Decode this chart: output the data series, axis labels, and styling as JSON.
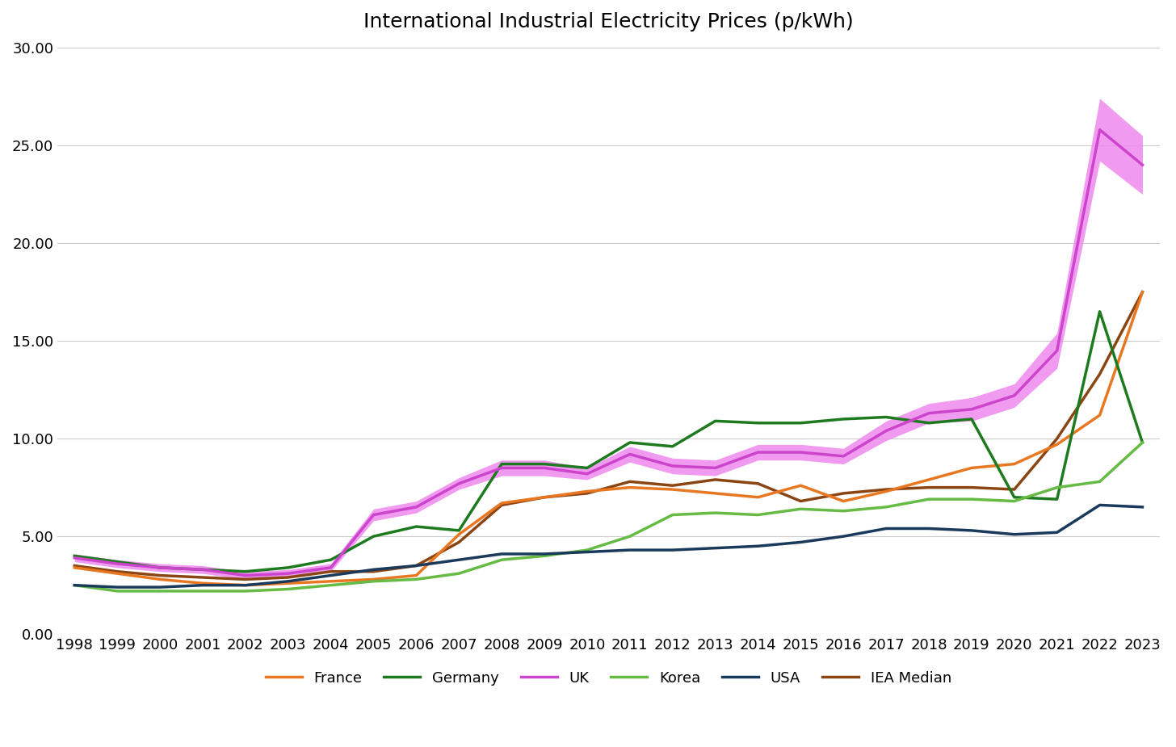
{
  "title": "International Industrial Electricity Prices (p/kWh)",
  "years": [
    1998,
    1999,
    2000,
    2001,
    2002,
    2003,
    2004,
    2005,
    2006,
    2007,
    2008,
    2009,
    2010,
    2011,
    2012,
    2013,
    2014,
    2015,
    2016,
    2017,
    2018,
    2019,
    2020,
    2021,
    2022,
    2023
  ],
  "france": [
    3.4,
    3.1,
    2.8,
    2.6,
    2.5,
    2.6,
    2.7,
    2.8,
    3.0,
    5.1,
    6.7,
    7.0,
    7.3,
    7.5,
    7.4,
    7.2,
    7.0,
    7.6,
    6.8,
    7.3,
    7.9,
    8.5,
    8.7,
    9.7,
    11.2,
    17.5
  ],
  "germany": [
    4.0,
    3.7,
    3.4,
    3.3,
    3.2,
    3.4,
    3.8,
    5.0,
    5.5,
    5.3,
    8.7,
    8.7,
    8.5,
    9.8,
    9.6,
    10.9,
    10.8,
    10.8,
    11.0,
    11.1,
    10.8,
    11.0,
    7.0,
    6.9,
    16.5,
    9.8
  ],
  "uk": [
    3.9,
    3.6,
    3.4,
    3.3,
    3.0,
    3.1,
    3.4,
    6.1,
    6.5,
    7.7,
    8.5,
    8.5,
    8.2,
    9.2,
    8.6,
    8.5,
    9.3,
    9.3,
    9.1,
    10.4,
    11.3,
    11.5,
    12.2,
    14.5,
    25.8,
    24.0
  ],
  "uk_lower": [
    3.7,
    3.4,
    3.2,
    3.1,
    2.8,
    2.9,
    3.2,
    5.8,
    6.2,
    7.4,
    8.1,
    8.1,
    7.9,
    8.8,
    8.2,
    8.1,
    8.9,
    8.9,
    8.7,
    9.9,
    10.8,
    10.9,
    11.6,
    13.6,
    24.2,
    22.5
  ],
  "uk_upper": [
    4.1,
    3.8,
    3.6,
    3.5,
    3.2,
    3.3,
    3.6,
    6.4,
    6.8,
    8.0,
    8.9,
    8.9,
    8.5,
    9.6,
    9.0,
    8.9,
    9.7,
    9.7,
    9.5,
    10.9,
    11.8,
    12.1,
    12.8,
    15.4,
    27.4,
    25.5
  ],
  "korea": [
    2.5,
    2.2,
    2.2,
    2.2,
    2.2,
    2.3,
    2.5,
    2.7,
    2.8,
    3.1,
    3.8,
    4.0,
    4.3,
    5.0,
    6.1,
    6.2,
    6.1,
    6.4,
    6.3,
    6.5,
    6.9,
    6.9,
    6.8,
    7.5,
    7.8,
    9.8
  ],
  "usa": [
    2.5,
    2.4,
    2.4,
    2.5,
    2.5,
    2.7,
    3.0,
    3.3,
    3.5,
    3.8,
    4.1,
    4.1,
    4.2,
    4.3,
    4.3,
    4.4,
    4.5,
    4.7,
    5.0,
    5.4,
    5.4,
    5.3,
    5.1,
    5.2,
    6.6,
    6.5
  ],
  "iea_median": [
    3.5,
    3.2,
    3.0,
    2.9,
    2.8,
    2.9,
    3.2,
    3.2,
    3.5,
    4.7,
    6.6,
    7.0,
    7.2,
    7.8,
    7.6,
    7.9,
    7.7,
    6.8,
    7.2,
    7.4,
    7.5,
    7.5,
    7.4,
    10.0,
    13.3,
    17.5
  ],
  "colors": {
    "france": "#E87722",
    "germany": "#1E7A1E",
    "uk": "#CC44CC",
    "korea": "#66BB44",
    "usa": "#1A3A5C",
    "iea_median": "#8B4513"
  },
  "uk_band_color": "#EE88EE",
  "ylim": [
    0,
    30
  ],
  "yticks": [
    0.0,
    5.0,
    10.0,
    15.0,
    20.0,
    25.0,
    30.0
  ],
  "background_color": "#FFFFFF",
  "grid_color": "#CCCCCC",
  "title_fontsize": 18,
  "tick_fontsize": 13,
  "legend_fontsize": 13,
  "line_width": 2.5
}
